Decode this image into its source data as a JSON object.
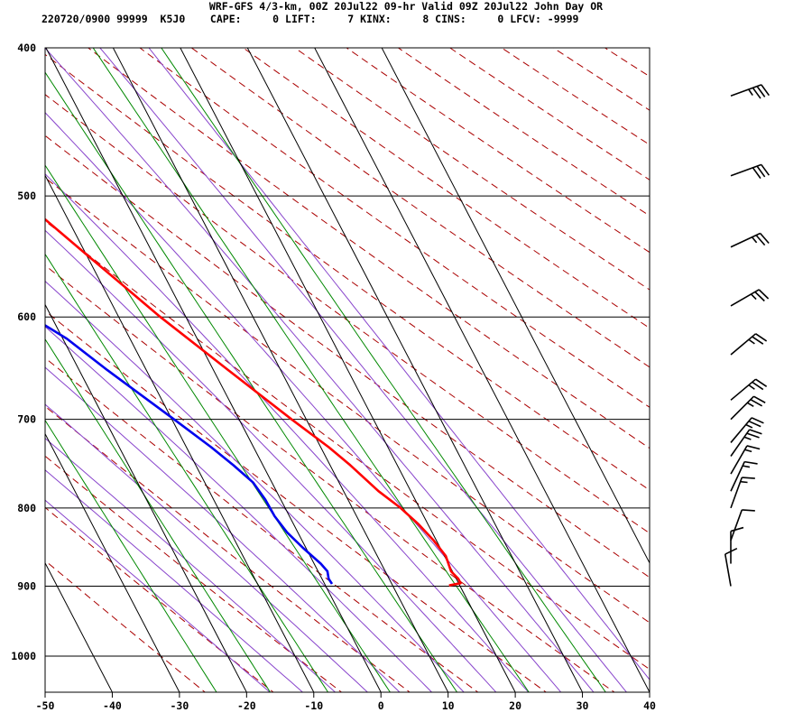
{
  "header": {
    "line1": "WRF-GFS 4/3-km, 00Z 20Jul22 09-hr Valid 09Z 20Jul22 John Day OR",
    "line2": "220720/0900 99999  K5J0    CAPE:     0 LIFT:     7 KINX:     8 CINS:     0 LFCV: -9999"
  },
  "chart_data": {
    "type": "line",
    "subtype": "skew-t log-p sounding",
    "title": "WRF-GFS 4/3-km, 00Z 20Jul22 09-hr Valid 09Z 20Jul22 John Day OR",
    "xlabel": "",
    "ylabel": "",
    "x_range": [
      -50,
      40
    ],
    "p_range": [
      1050,
      400
    ],
    "x_ticks": [
      -50,
      -40,
      -30,
      -20,
      -10,
      0,
      10,
      20,
      30,
      40
    ],
    "p_tick_labels": [
      400,
      500,
      600,
      700,
      800,
      900,
      1000
    ],
    "grid": true,
    "colors": {
      "temperature": "#ff0000",
      "dewpoint": "#0000ee",
      "dry_adiabat": "#aa0000",
      "moist_adiabat": "#8844cc",
      "mixing_ratio": "#008800",
      "grid": "#000000"
    },
    "series": [
      {
        "id": "temperature",
        "points": [
          {
            "p": 899,
            "t": 18.4
          },
          {
            "p": 896,
            "t": 20.3
          },
          {
            "p": 890,
            "t": 20.3
          },
          {
            "p": 880,
            "t": 19.8
          },
          {
            "p": 860,
            "t": 20.2
          },
          {
            "p": 840,
            "t": 19.6
          },
          {
            "p": 820,
            "t": 18.6
          },
          {
            "p": 800,
            "t": 17.2
          },
          {
            "p": 780,
            "t": 15.2
          },
          {
            "p": 750,
            "t": 13.0
          },
          {
            "p": 730,
            "t": 11.2
          },
          {
            "p": 700,
            "t": 7.8
          },
          {
            "p": 650,
            "t": 2.2
          },
          {
            "p": 600,
            "t": -3.8
          },
          {
            "p": 550,
            "t": -9.5
          },
          {
            "p": 500,
            "t": -15.7
          },
          {
            "p": 450,
            "t": -22.5
          },
          {
            "p": 430,
            "t": -25.4
          }
        ]
      },
      {
        "id": "dewpoint",
        "points": [
          {
            "p": 897,
            "t": 1.1
          },
          {
            "p": 890,
            "t": 1.0
          },
          {
            "p": 880,
            "t": 1.4
          },
          {
            "p": 870,
            "t": 1.0
          },
          {
            "p": 850,
            "t": -0.4
          },
          {
            "p": 830,
            "t": -1.6
          },
          {
            "p": 810,
            "t": -2.2
          },
          {
            "p": 790,
            "t": -2.3
          },
          {
            "p": 770,
            "t": -2.8
          },
          {
            "p": 750,
            "t": -4.4
          },
          {
            "p": 730,
            "t": -6.3
          },
          {
            "p": 700,
            "t": -9.7
          },
          {
            "p": 650,
            "t": -15.8
          },
          {
            "p": 620,
            "t": -19.4
          },
          {
            "p": 600,
            "t": -23.0
          },
          {
            "p": 550,
            "t": -33.5
          },
          {
            "p": 530,
            "t": -39.6
          },
          {
            "p": 500,
            "t": -44.6
          },
          {
            "p": 480,
            "t": -47.7
          },
          {
            "p": 460,
            "t": -50.3
          },
          {
            "p": 430,
            "t": -53.5
          }
        ]
      }
    ],
    "wind_barbs": [
      {
        "p": 430,
        "dir": 250,
        "speed": 35
      },
      {
        "p": 485,
        "dir": 250,
        "speed": 30
      },
      {
        "p": 540,
        "dir": 245,
        "speed": 25
      },
      {
        "p": 590,
        "dir": 240,
        "speed": 25
      },
      {
        "p": 635,
        "dir": 230,
        "speed": 25
      },
      {
        "p": 680,
        "dir": 230,
        "speed": 25
      },
      {
        "p": 700,
        "dir": 225,
        "speed": 25
      },
      {
        "p": 725,
        "dir": 220,
        "speed": 25
      },
      {
        "p": 740,
        "dir": 215,
        "speed": 25
      },
      {
        "p": 760,
        "dir": 210,
        "speed": 15
      },
      {
        "p": 780,
        "dir": 205,
        "speed": 15
      },
      {
        "p": 800,
        "dir": 200,
        "speed": 15
      },
      {
        "p": 840,
        "dir": 200,
        "speed": 10
      },
      {
        "p": 870,
        "dir": 180,
        "speed": 10
      },
      {
        "p": 900,
        "dir": 170,
        "speed": 10
      }
    ]
  }
}
